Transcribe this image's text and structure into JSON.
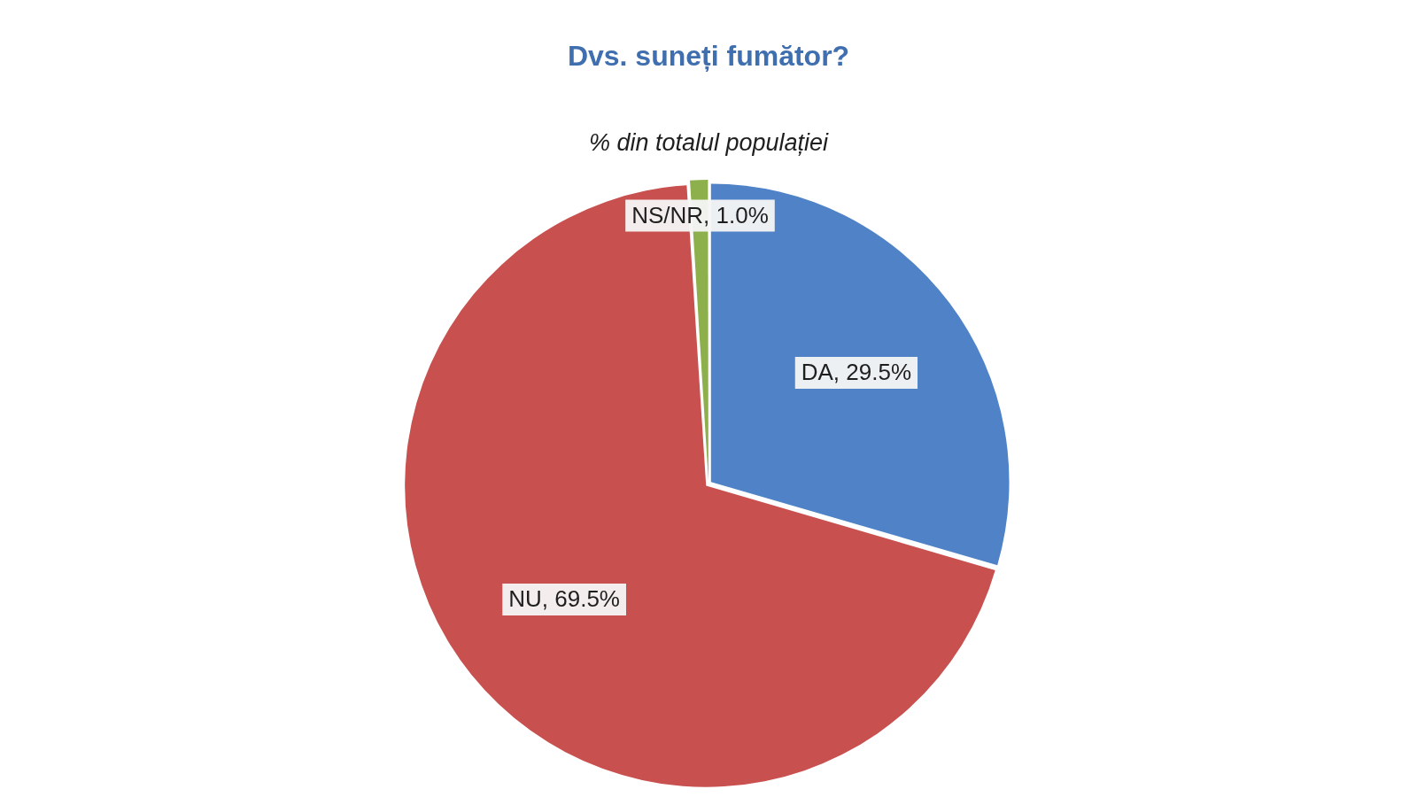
{
  "chart_data": {
    "type": "pie",
    "title": "Dvs. suneți fumător?",
    "subtitle": "% din totalul populației",
    "categories": [
      "DA",
      "NU",
      "NS/NR"
    ],
    "values": [
      29.5,
      69.5,
      1
    ],
    "colors": [
      "#4f82c6",
      "#c8504e",
      "#8db04c"
    ],
    "value_labels": [
      "29.5%",
      "69.5%",
      "1.0%"
    ]
  }
}
